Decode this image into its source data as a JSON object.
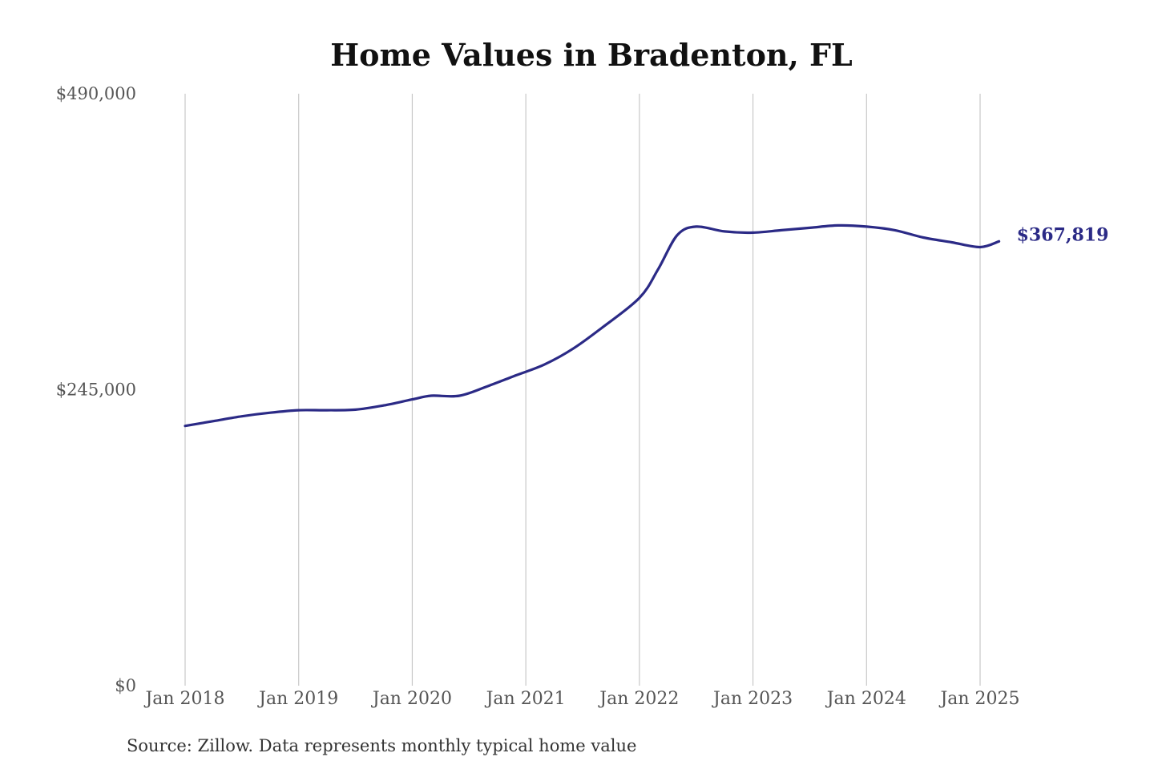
{
  "chart_data": {
    "type": "line",
    "title": "Home Values in Bradenton, FL",
    "xlabel": "",
    "ylabel": "",
    "source": "Source: Zillow. Data represents monthly typical home value",
    "ylim": [
      0,
      490000
    ],
    "yticks": [
      {
        "value": 490000,
        "label": "$490,000"
      },
      {
        "value": 245000,
        "label": "$245,000"
      },
      {
        "value": 0,
        "label": "$0"
      }
    ],
    "xticks": [
      {
        "value": "2018-01",
        "label": "Jan 2018"
      },
      {
        "value": "2019-01",
        "label": "Jan 2019"
      },
      {
        "value": "2020-01",
        "label": "Jan 2020"
      },
      {
        "value": "2021-01",
        "label": "Jan 2021"
      },
      {
        "value": "2022-01",
        "label": "Jan 2022"
      },
      {
        "value": "2023-01",
        "label": "Jan 2023"
      },
      {
        "value": "2024-01",
        "label": "Jan 2024"
      },
      {
        "value": "2025-01",
        "label": "Jan 2025"
      }
    ],
    "grid": "vertical",
    "line_color": "#2b2a86",
    "end_label": "$367,819",
    "series": [
      {
        "x": [
          "2018-01",
          "2018-04",
          "2018-07",
          "2018-10",
          "2019-01",
          "2019-04",
          "2019-07",
          "2019-10",
          "2020-01",
          "2020-03",
          "2020-06",
          "2020-09",
          "2020-12",
          "2021-03",
          "2021-06",
          "2021-09",
          "2022-01",
          "2022-03",
          "2022-05",
          "2022-07",
          "2022-10",
          "2023-01",
          "2023-04",
          "2023-07",
          "2023-10",
          "2024-01",
          "2024-04",
          "2024-07",
          "2024-10",
          "2025-01",
          "2025-03"
        ],
        "values": [
          215000,
          219000,
          223000,
          226000,
          228000,
          228000,
          228500,
          232000,
          237000,
          240000,
          240000,
          248000,
          257000,
          266000,
          279000,
          296000,
          321000,
          345000,
          373000,
          380000,
          376000,
          375000,
          377000,
          379000,
          381000,
          380000,
          377000,
          371000,
          367000,
          363000,
          367819
        ]
      }
    ]
  }
}
